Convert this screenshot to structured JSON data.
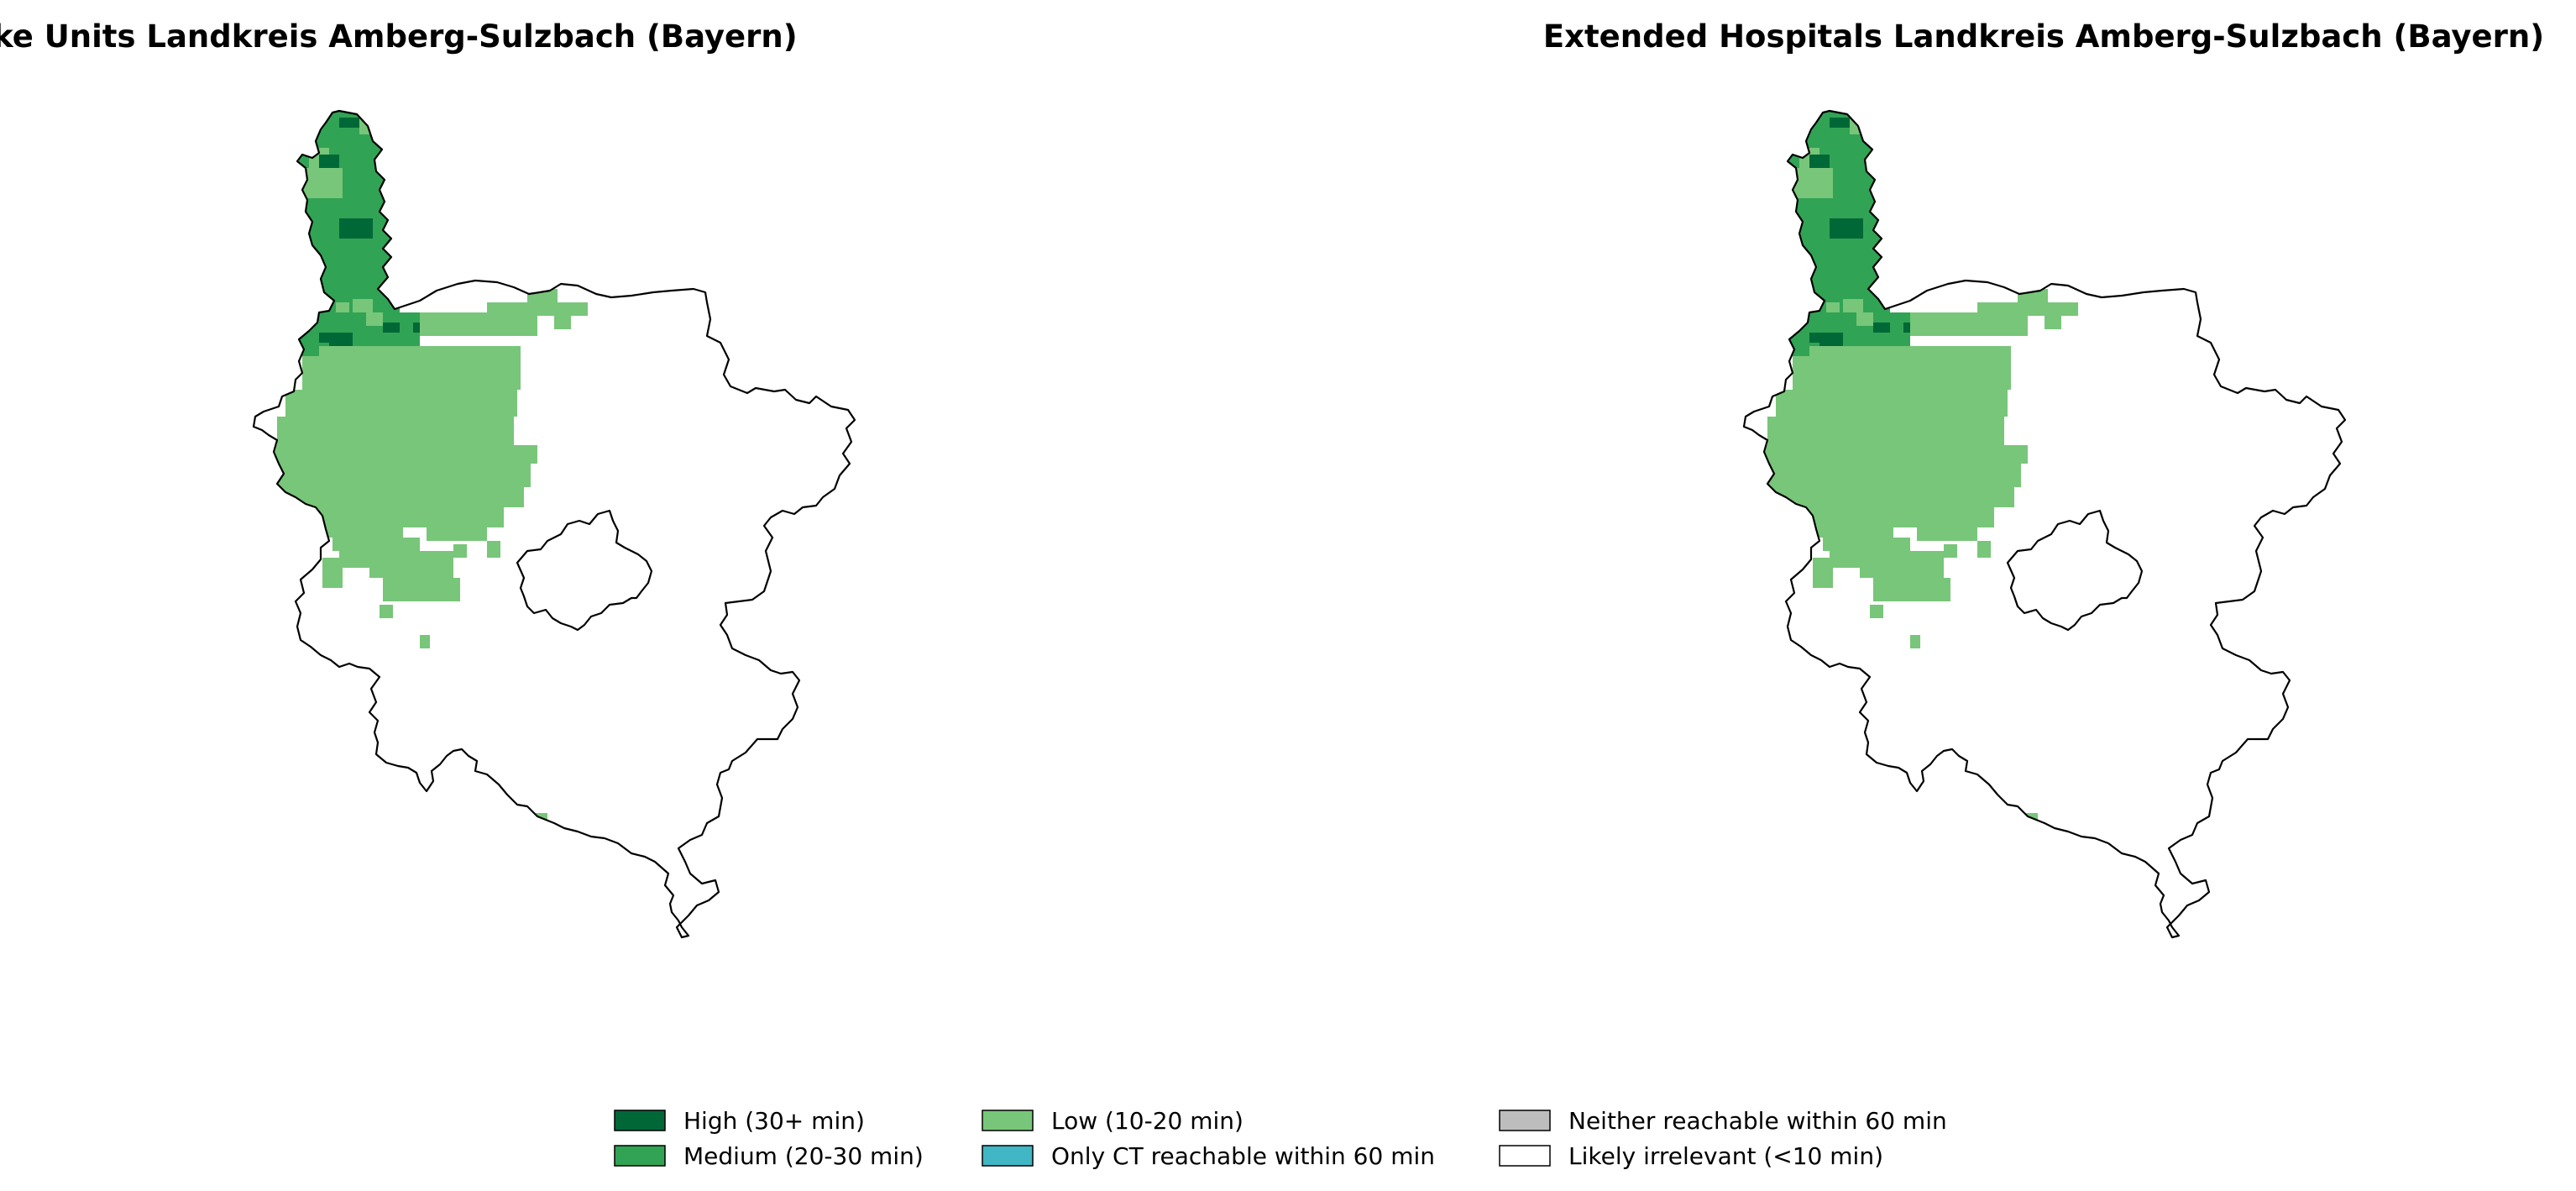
{
  "maps": [
    {
      "title": "Certified Stroke Units Landkreis Amberg-Sulzbach (Bayern)"
    },
    {
      "title": "Extended Hospitals Landkreis Amberg-Sulzbach (Bayern)"
    }
  ],
  "legend": {
    "items": [
      {
        "label": "High (30+ min)",
        "color": "#006837"
      },
      {
        "label": "Medium (20-30 min)",
        "color": "#31a354"
      },
      {
        "label": "Low (10-20 min)",
        "color": "#78c679"
      },
      {
        "label": "Only CT reachable within 60 min",
        "color": "#41b6c4"
      },
      {
        "label": "Neither reachable within 60 min",
        "color": "#bdbdbd"
      },
      {
        "label": "Likely irrelevant (<10 min)",
        "color": "#ffffff"
      }
    ]
  }
}
